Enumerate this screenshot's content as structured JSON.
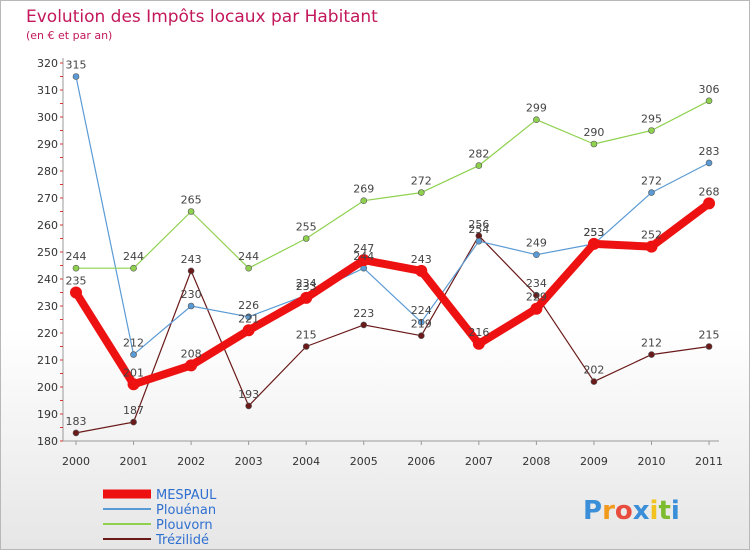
{
  "chart_data": {
    "type": "line",
    "title": "Evolution des Impôts locaux par Habitant",
    "subtitle": "(en € et par an)",
    "xlabel": "",
    "ylabel": "",
    "ylim": [
      180,
      320
    ],
    "yticks": [
      180,
      190,
      200,
      210,
      220,
      230,
      240,
      250,
      260,
      270,
      280,
      290,
      300,
      310,
      320
    ],
    "categories": [
      "2000",
      "2001",
      "2002",
      "2003",
      "2004",
      "2005",
      "2006",
      "2007",
      "2008",
      "2009",
      "2010",
      "2011"
    ],
    "series": [
      {
        "name": "MESPAUL",
        "color": "#ee1111",
        "values": [
          235,
          201,
          208,
          221,
          233,
          247,
          243,
          216,
          229,
          253,
          252,
          268
        ]
      },
      {
        "name": "Plouénan",
        "color": "#5b9bd5",
        "values": [
          315,
          212,
          230,
          226,
          234,
          244,
          224,
          254,
          249,
          253,
          272,
          283
        ]
      },
      {
        "name": "Plouvorn",
        "color": "#8fd14f",
        "values": [
          244,
          244,
          265,
          244,
          255,
          269,
          272,
          282,
          299,
          290,
          295,
          306
        ]
      },
      {
        "name": "Trézilidé",
        "color": "#6b1a1a",
        "values": [
          183,
          187,
          243,
          193,
          215,
          223,
          219,
          256,
          234,
          202,
          212,
          215
        ]
      }
    ]
  },
  "logo": {
    "letters": [
      "P",
      "r",
      "o",
      "x",
      "i",
      "t",
      "i"
    ],
    "colors": [
      "#3a8fd8",
      "#f29a1e",
      "#e84c3d",
      "#3a8fd8",
      "#f2c21e",
      "#7dbb2f",
      "#3a8fd8"
    ]
  }
}
